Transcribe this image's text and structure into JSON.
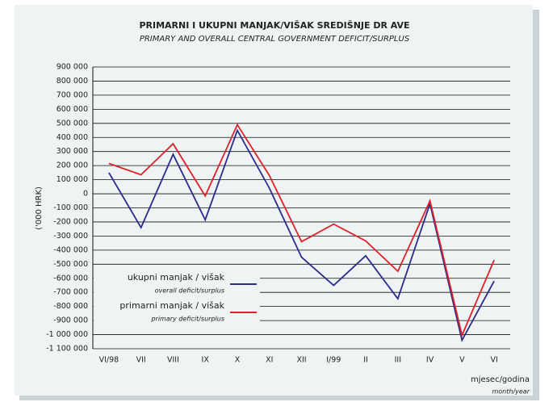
{
  "chart_data": {
    "type": "line",
    "title": "PRIMARNI I UKUPNI MANJAK/VIŠAK SREDIŠNJE DR AVE",
    "subtitle": "PRIMARY AND OVERALL CENTRAL GOVERNMENT DEFICIT/SURPLUS",
    "y_label": "('000 HRK)",
    "x_label": "mjesec/godina",
    "x_label_en": "month/year",
    "categories": [
      "VI/98",
      "VII",
      "VIII",
      "IX",
      "X",
      "XI",
      "XII",
      "I/99",
      "II",
      "III",
      "IV",
      "V",
      "VI"
    ],
    "series": [
      {
        "name": "ukupni manjak / višak",
        "name_en": "overall deficit/surplus",
        "color": "#2b2b8c",
        "values": [
          150000,
          -240000,
          280000,
          -185000,
          450000,
          40000,
          -450000,
          -650000,
          -440000,
          -745000,
          -70000,
          -1040000,
          -620000
        ]
      },
      {
        "name": "primarni manjak / višak",
        "name_en": "primary deficit/surplus",
        "color": "#e0202a",
        "values": [
          215000,
          135000,
          355000,
          -15000,
          490000,
          130000,
          -340000,
          -215000,
          -335000,
          -550000,
          -50000,
          -1005000,
          -470000
        ]
      }
    ],
    "ylim": [
      -1100000,
      900000
    ],
    "yticks": [
      {
        "value": 900000,
        "label": "900 000"
      },
      {
        "value": 800000,
        "label": "800 000"
      },
      {
        "value": 700000,
        "label": "700 000"
      },
      {
        "value": 600000,
        "label": "600 000"
      },
      {
        "value": 500000,
        "label": "500 000"
      },
      {
        "value": 400000,
        "label": "400 000"
      },
      {
        "value": 300000,
        "label": "300 000"
      },
      {
        "value": 200000,
        "label": "200 000"
      },
      {
        "value": 100000,
        "label": "100 000"
      },
      0,
      {
        "value": -100000,
        "label": "-100 000"
      },
      {
        "value": -200000,
        "label": "-200 000"
      },
      {
        "value": -300000,
        "label": "-300 000"
      },
      {
        "value": -400000,
        "label": "-400 000"
      },
      {
        "value": -500000,
        "label": "-500 000"
      },
      {
        "value": -600000,
        "label": "-600 000"
      },
      {
        "value": -700000,
        "label": "-700 000"
      },
      {
        "value": -800000,
        "label": "-800 000"
      },
      {
        "value": -900000,
        "label": "-900 000"
      },
      {
        "value": -1000000,
        "label": "-1 000 000"
      },
      {
        "value": -1100000,
        "label": "-1 100 000"
      }
    ],
    "grid": true
  }
}
